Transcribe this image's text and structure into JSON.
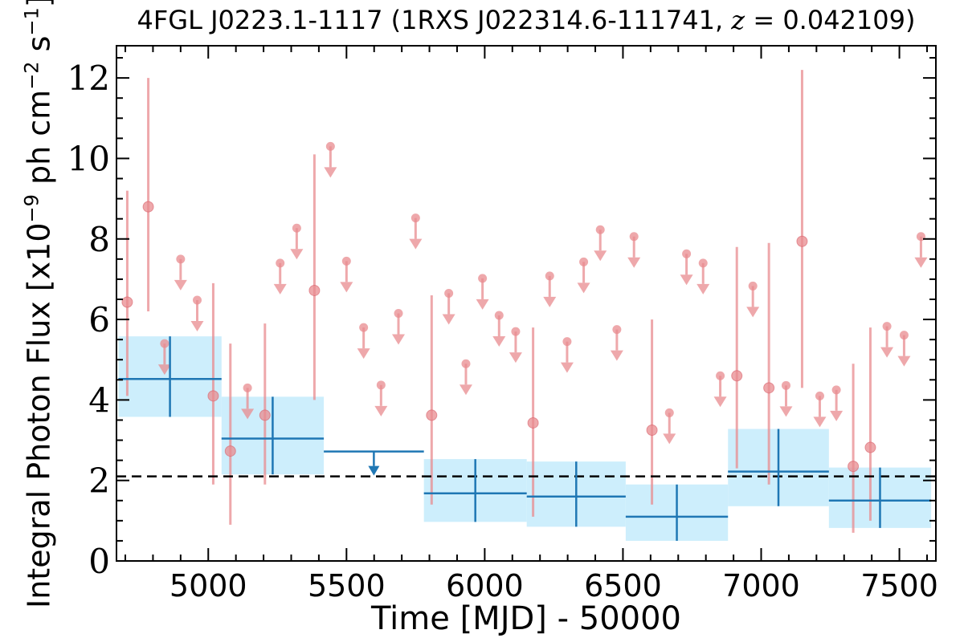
{
  "chart_data": {
    "type": "scatter",
    "title": "4FGL J0223.1-1117 (1RXS J022314.6-111741, z = 0.042109)",
    "title_parts": {
      "source": "4FGL J0223.1-1117 (1RXS J022314.6-111741, ",
      "z_symbol": "z",
      "z_value": " = 0.042109)"
    },
    "xlabel": "Time [MJD] - 50000",
    "ylabel": "Integral Photon Flux [x10⁻⁹ ph cm⁻² s⁻¹]",
    "ylabel_parts": {
      "base": "Integral Photon Flux [x10",
      "exp1": "−9",
      "mid": " ph cm",
      "exp2": "−2",
      "mid2": " s",
      "exp3": "−1",
      "end": "]"
    },
    "xlim": [
      4668,
      7632
    ],
    "ylim": [
      0,
      12.8
    ],
    "xticks": [
      5000,
      5500,
      6000,
      6500,
      7000,
      7500
    ],
    "xtick_labels": [
      "5000",
      "5500",
      "6000",
      "6500",
      "7000",
      "7500"
    ],
    "yticks": [
      0,
      2,
      4,
      6,
      8,
      10,
      12
    ],
    "ytick_labels": [
      "0",
      "2",
      "4",
      "6",
      "8",
      "10",
      "12"
    ],
    "reference_line": 2.1,
    "colors": {
      "fine_bins": "#e88b8f",
      "coarse_bins": "#1f77b4",
      "coarse_band": "#cdeefc",
      "reference": "#000000"
    },
    "fine_detections": [
      {
        "x": 4707,
        "y": 6.43,
        "lo": 4.1,
        "hi": 9.2
      },
      {
        "x": 4783,
        "y": 8.8,
        "lo": 6.2,
        "hi": 12.0
      },
      {
        "x": 5018,
        "y": 4.1,
        "lo": 1.9,
        "hi": 6.9
      },
      {
        "x": 5080,
        "y": 2.73,
        "lo": 0.9,
        "hi": 5.4
      },
      {
        "x": 5205,
        "y": 3.62,
        "lo": 1.9,
        "hi": 5.9
      },
      {
        "x": 5384,
        "y": 6.72,
        "lo": 4.0,
        "hi": 10.1
      },
      {
        "x": 5808,
        "y": 3.62,
        "lo": 1.4,
        "hi": 6.6
      },
      {
        "x": 6175,
        "y": 3.43,
        "lo": 1.1,
        "hi": 5.8
      },
      {
        "x": 6605,
        "y": 3.25,
        "lo": 1.4,
        "hi": 6.0
      },
      {
        "x": 6912,
        "y": 4.6,
        "lo": 2.3,
        "hi": 7.8
      },
      {
        "x": 7028,
        "y": 4.3,
        "lo": 1.9,
        "hi": 7.9
      },
      {
        "x": 7148,
        "y": 7.94,
        "lo": 4.3,
        "hi": 12.2
      },
      {
        "x": 7333,
        "y": 2.35,
        "lo": 0.7,
        "hi": 4.9
      },
      {
        "x": 7395,
        "y": 2.82,
        "lo": 1.0,
        "hi": 5.8
      }
    ],
    "fine_upper_limits": [
      {
        "x": 4842,
        "y": 5.4
      },
      {
        "x": 4900,
        "y": 7.5
      },
      {
        "x": 4960,
        "y": 6.48
      },
      {
        "x": 5142,
        "y": 4.3
      },
      {
        "x": 5260,
        "y": 7.4
      },
      {
        "x": 5320,
        "y": 8.27
      },
      {
        "x": 5442,
        "y": 10.3
      },
      {
        "x": 5500,
        "y": 7.45
      },
      {
        "x": 5562,
        "y": 5.8
      },
      {
        "x": 5625,
        "y": 4.37
      },
      {
        "x": 5688,
        "y": 6.15
      },
      {
        "x": 5750,
        "y": 8.52
      },
      {
        "x": 5870,
        "y": 6.65
      },
      {
        "x": 5932,
        "y": 4.9
      },
      {
        "x": 5992,
        "y": 7.02
      },
      {
        "x": 6052,
        "y": 6.1
      },
      {
        "x": 6112,
        "y": 5.7
      },
      {
        "x": 6235,
        "y": 7.08
      },
      {
        "x": 6298,
        "y": 5.45
      },
      {
        "x": 6358,
        "y": 7.43
      },
      {
        "x": 6418,
        "y": 8.23
      },
      {
        "x": 6478,
        "y": 5.75
      },
      {
        "x": 6540,
        "y": 8.06
      },
      {
        "x": 6668,
        "y": 3.68
      },
      {
        "x": 6730,
        "y": 7.63
      },
      {
        "x": 6790,
        "y": 7.4
      },
      {
        "x": 6852,
        "y": 4.6
      },
      {
        "x": 6970,
        "y": 6.83
      },
      {
        "x": 7090,
        "y": 4.36
      },
      {
        "x": 7212,
        "y": 4.1
      },
      {
        "x": 7272,
        "y": 4.25
      },
      {
        "x": 7455,
        "y": 5.83
      },
      {
        "x": 7517,
        "y": 5.61
      },
      {
        "x": 7578,
        "y": 8.06
      }
    ],
    "coarse_detections": [
      {
        "x0": 4675,
        "x1": 5048,
        "y": 4.52,
        "lo": 3.58,
        "hi": 5.58
      },
      {
        "x0": 5048,
        "x1": 5418,
        "y": 3.04,
        "lo": 2.15,
        "hi": 4.08
      },
      {
        "x0": 5780,
        "x1": 6152,
        "y": 1.68,
        "lo": 0.97,
        "hi": 2.53
      },
      {
        "x0": 6152,
        "x1": 6510,
        "y": 1.6,
        "lo": 0.85,
        "hi": 2.47
      },
      {
        "x0": 6510,
        "x1": 6880,
        "y": 1.1,
        "lo": 0.5,
        "hi": 1.9
      },
      {
        "x0": 6880,
        "x1": 7245,
        "y": 2.22,
        "lo": 1.36,
        "hi": 3.28
      },
      {
        "x0": 7245,
        "x1": 7615,
        "y": 1.5,
        "lo": 0.82,
        "hi": 2.32
      }
    ],
    "coarse_upper_limits": [
      {
        "x0": 5418,
        "x1": 5780,
        "y": 2.72
      }
    ]
  }
}
